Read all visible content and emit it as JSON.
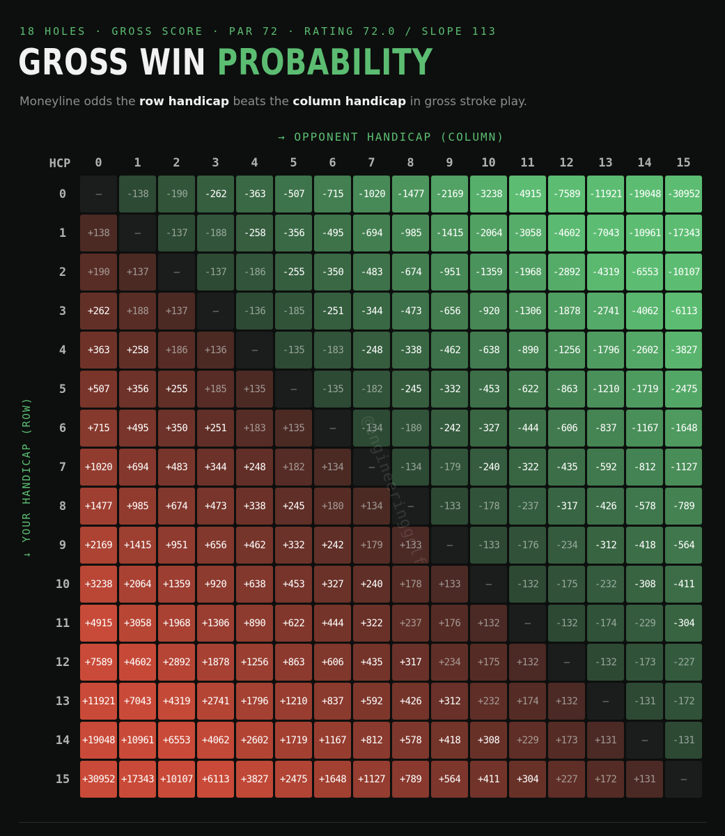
{
  "header": {
    "eyebrow": "18 HOLES · GROSS SCORE · PAR 72 · RATING 72.0 / SLOPE 113",
    "title_white": "GROSS WIN",
    "title_green": "PROBABILITY",
    "subtitle_pre": "Moneyline odds the ",
    "subtitle_b1": "row handicap",
    "subtitle_mid": " beats the ",
    "subtitle_b2": "column handicap",
    "subtitle_post": " in gross stroke play."
  },
  "watermark": "@engineeringgolf",
  "colors": {
    "background": "#0d0f0e",
    "accent": "#5cbd72",
    "favorite": "#5cbd72",
    "underdog": "#c94a38",
    "diagonal": "#1b1d1c"
  },
  "chart_data": {
    "type": "heatmap",
    "title": "GROSS WIN PROBABILITY",
    "xlabel": "→ OPPONENT HANDICAP (COLUMN)",
    "ylabel": "↓ YOUR HANDICAP (ROW)",
    "corner_label": "HCP",
    "x": [
      "0",
      "1",
      "2",
      "3",
      "4",
      "5",
      "6",
      "7",
      "8",
      "9",
      "10",
      "11",
      "12",
      "13",
      "14",
      "15"
    ],
    "y": [
      "0",
      "1",
      "2",
      "3",
      "4",
      "5",
      "6",
      "7",
      "8",
      "9",
      "10",
      "11",
      "12",
      "13",
      "14",
      "15"
    ],
    "values": [
      [
        "–",
        "-138",
        "-190",
        "-262",
        "-363",
        "-507",
        "-715",
        "-1020",
        "-1477",
        "-2169",
        "-3238",
        "-4915",
        "-7589",
        "-11921",
        "-19048",
        "-30952"
      ],
      [
        "+138",
        "–",
        "-137",
        "-188",
        "-258",
        "-356",
        "-495",
        "-694",
        "-985",
        "-1415",
        "-2064",
        "-3058",
        "-4602",
        "-7043",
        "-10961",
        "-17343"
      ],
      [
        "+190",
        "+137",
        "–",
        "-137",
        "-186",
        "-255",
        "-350",
        "-483",
        "-674",
        "-951",
        "-1359",
        "-1968",
        "-2892",
        "-4319",
        "-6553",
        "-10107"
      ],
      [
        "+262",
        "+188",
        "+137",
        "–",
        "-136",
        "-185",
        "-251",
        "-344",
        "-473",
        "-656",
        "-920",
        "-1306",
        "-1878",
        "-2741",
        "-4062",
        "-6113"
      ],
      [
        "+363",
        "+258",
        "+186",
        "+136",
        "–",
        "-135",
        "-183",
        "-248",
        "-338",
        "-462",
        "-638",
        "-890",
        "-1256",
        "-1796",
        "-2602",
        "-3827"
      ],
      [
        "+507",
        "+356",
        "+255",
        "+185",
        "+135",
        "–",
        "-135",
        "-182",
        "-245",
        "-332",
        "-453",
        "-622",
        "-863",
        "-1210",
        "-1719",
        "-2475"
      ],
      [
        "+715",
        "+495",
        "+350",
        "+251",
        "+183",
        "+135",
        "–",
        "-134",
        "-180",
        "-242",
        "-327",
        "-444",
        "-606",
        "-837",
        "-1167",
        "-1648"
      ],
      [
        "+1020",
        "+694",
        "+483",
        "+344",
        "+248",
        "+182",
        "+134",
        "–",
        "-134",
        "-179",
        "-240",
        "-322",
        "-435",
        "-592",
        "-812",
        "-1127"
      ],
      [
        "+1477",
        "+985",
        "+674",
        "+473",
        "+338",
        "+245",
        "+180",
        "+134",
        "–",
        "-133",
        "-178",
        "-237",
        "-317",
        "-426",
        "-578",
        "-789"
      ],
      [
        "+2169",
        "+1415",
        "+951",
        "+656",
        "+462",
        "+332",
        "+242",
        "+179",
        "+133",
        "–",
        "-133",
        "-176",
        "-234",
        "-312",
        "-418",
        "-564"
      ],
      [
        "+3238",
        "+2064",
        "+1359",
        "+920",
        "+638",
        "+453",
        "+327",
        "+240",
        "+178",
        "+133",
        "–",
        "-132",
        "-175",
        "-232",
        "-308",
        "-411"
      ],
      [
        "+4915",
        "+3058",
        "+1968",
        "+1306",
        "+890",
        "+622",
        "+444",
        "+322",
        "+237",
        "+176",
        "+132",
        "–",
        "-132",
        "-174",
        "-229",
        "-304"
      ],
      [
        "+7589",
        "+4602",
        "+2892",
        "+1878",
        "+1256",
        "+863",
        "+606",
        "+435",
        "+317",
        "+234",
        "+175",
        "+132",
        "–",
        "-132",
        "-173",
        "-227"
      ],
      [
        "+11921",
        "+7043",
        "+4319",
        "+2741",
        "+1796",
        "+1210",
        "+837",
        "+592",
        "+426",
        "+312",
        "+232",
        "+174",
        "+132",
        "–",
        "-131",
        "-172"
      ],
      [
        "+19048",
        "+10961",
        "+6553",
        "+4062",
        "+2602",
        "+1719",
        "+1167",
        "+812",
        "+578",
        "+418",
        "+308",
        "+229",
        "+173",
        "+131",
        "–",
        "-131"
      ],
      [
        "+30952",
        "+17343",
        "+10107",
        "+6113",
        "+3827",
        "+2475",
        "+1648",
        "+1127",
        "+789",
        "+564",
        "+411",
        "+304",
        "+227",
        "+172",
        "+131",
        "–"
      ]
    ]
  }
}
